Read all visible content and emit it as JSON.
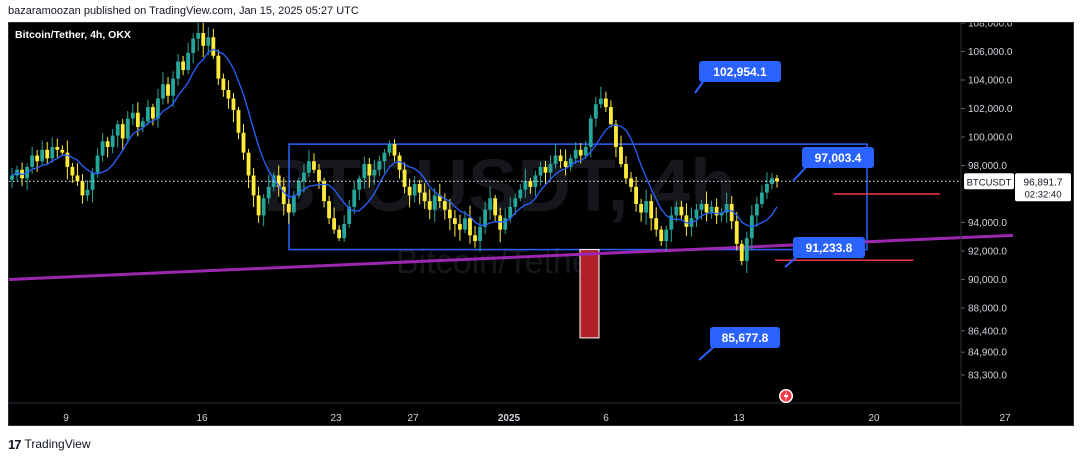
{
  "header": {
    "publish_line": "bazaramoozan published on TradingView.com, Jan 15, 2025 05:27 UTC"
  },
  "footer": {
    "brand": "TradingView",
    "logo_glyph": "17"
  },
  "colors": {
    "background": "#000000",
    "up_candle": "#26a69a",
    "down_candle": "#ffeb3b",
    "ma_line": "#2962ff",
    "range_box": "#2962ff",
    "trendline": "#9c27b0",
    "support_line": "#f23645",
    "red_bar": "#b2202a",
    "label_bg": "#2962ff"
  },
  "chart_data": {
    "type": "candlestick",
    "symbol_title": "Bitcoin/Tether, 4h, OKX",
    "watermark_symbol": "BTCUSDT, 4h",
    "watermark_name": "Bitcoin/Tether",
    "x_ticks": [
      "9",
      "16",
      "23",
      "27",
      "2025",
      "6",
      "13",
      "20",
      "27"
    ],
    "y_ticks": [
      "108,000.0",
      "106,000.0",
      "104,000.0",
      "102,000.0",
      "100,000.0",
      "98,000.0",
      "94,000.0",
      "92,000.0",
      "90,000.0",
      "88,000.0",
      "86,400.0",
      "84,900.0",
      "83,300.0"
    ],
    "current_price": {
      "symbol": "BTCUSDT",
      "value": "96,891.7",
      "countdown": "02:32:40"
    },
    "annotations": [
      {
        "text": "102,954.1",
        "anchor_price": 102954.1
      },
      {
        "text": "97,003.4",
        "anchor_price": 97003.4
      },
      {
        "text": "91,233.8",
        "anchor_price": 91233.8
      },
      {
        "text": "85,677.8",
        "anchor_price": 85677.8
      }
    ],
    "range_box": {
      "top": 99500,
      "bottom": 92100
    },
    "trendline": {
      "start": 90000,
      "end": 93100
    },
    "candle_closes": [
      97300,
      97700,
      97100,
      97900,
      98700,
      98300,
      99100,
      98500,
      99300,
      99100,
      98900,
      97900,
      97300,
      96900,
      95900,
      96300,
      97500,
      98700,
      99700,
      99300,
      100100,
      100900,
      99900,
      101300,
      101700,
      100700,
      101100,
      102100,
      101300,
      102700,
      103700,
      102900,
      104100,
      105300,
      104700,
      105900,
      106900,
      107300,
      106400,
      107000,
      105700,
      104100,
      103300,
      102700,
      101900,
      100300,
      98900,
      97300,
      95900,
      94500,
      95700,
      96500,
      97300,
      96500,
      95300,
      94700,
      95900,
      96900,
      97500,
      98300,
      97700,
      96900,
      95500,
      94300,
      93500,
      92900,
      93900,
      95100,
      96300,
      97100,
      98100,
      97300,
      97700,
      98300,
      98900,
      99500,
      98700,
      97700,
      96500,
      95900,
      96700,
      96100,
      95500,
      94900,
      95900,
      95500,
      94900,
      94300,
      93900,
      93500,
      94300,
      93100,
      92700,
      93700,
      94900,
      95700,
      94500,
      93500,
      94300,
      95100,
      95700,
      96300,
      96900,
      96500,
      97300,
      97900,
      97500,
      98100,
      98700,
      98300,
      97900,
      98500,
      99100,
      98700,
      99300,
      101300,
      102300,
      102700,
      102100,
      100900,
      99300,
      98100,
      97100,
      96500,
      95300,
      94700,
      95500,
      94300,
      93500,
      92700,
      93500,
      94500,
      95100,
      94500,
      93700,
      94300,
      94900,
      95300,
      94700,
      95100,
      94500,
      94700,
      95300,
      94100,
      92500,
      91300,
      92900,
      94500,
      95300,
      96100,
      96700,
      97100,
      96891.7
    ],
    "red_bar": {
      "top": 92100,
      "bottom": 85900
    },
    "support_lines": [
      {
        "price": 96000,
        "from": 0.775,
        "to": 0.875
      },
      {
        "price": 91350,
        "from": 0.72,
        "to": 0.85
      }
    ]
  }
}
